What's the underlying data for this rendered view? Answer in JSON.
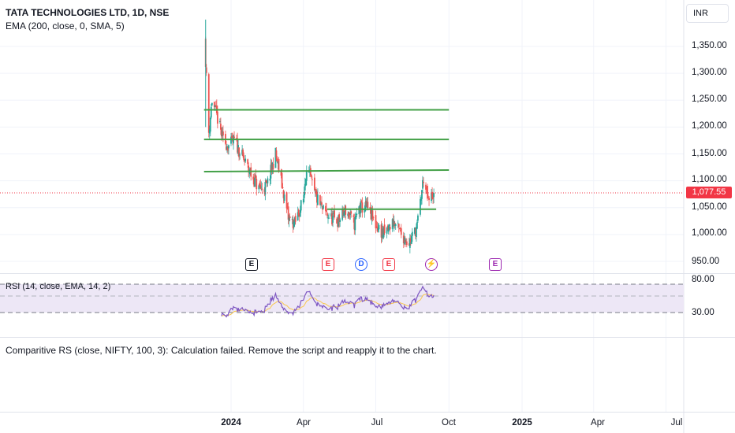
{
  "header": {
    "title": "TATA TECHNOLOGIES LTD, 1D, NSE",
    "study": "EMA (200, close, 0, SMA, 5)"
  },
  "currency": "INR",
  "last_price": "1,077.55",
  "price_axis": [
    "1,350.00",
    "1,300.00",
    "1,250.00",
    "1,200.00",
    "1,150.00",
    "1,100.00",
    "1,050.00",
    "1,000.00",
    "950.00"
  ],
  "time_axis": [
    "2024",
    "Apr",
    "Jul",
    "Oct",
    "2025",
    "Apr",
    "Jul"
  ],
  "events": [
    {
      "label": "E",
      "type": "earnings-past"
    },
    {
      "label": "E",
      "type": "earnings"
    },
    {
      "label": "D",
      "type": "dividend"
    },
    {
      "label": "E",
      "type": "earnings"
    },
    {
      "label": "⚡",
      "type": "split"
    },
    {
      "label": "E",
      "type": "earnings-future"
    }
  ],
  "rsi": {
    "label": "RSI (14, close, EMA, 14, 2)",
    "levels": [
      "80.00",
      "30.00"
    ]
  },
  "comparative": {
    "label": "Comparitive RS (close, NIFTY, 100, 3): Calculation failed. Remove the script and reapply it to the chart."
  },
  "colors": {
    "up": "#26a69a",
    "down": "#ef5350",
    "levels": "#43a047",
    "rsi_line": "#7e57c2",
    "rsi_ma": "#f9c74f",
    "rsi_band": "#ede7f6",
    "last_price": "#f23645"
  },
  "chart_data": {
    "type": "candlestick",
    "series": [
      {
        "name": "TATA TECHNOLOGIES LTD",
        "close_path": [
          [
            "2023-11-30",
            1325
          ],
          [
            "2023-12-04",
            1190
          ],
          [
            "2023-12-08",
            1250
          ],
          [
            "2023-12-15",
            1215
          ],
          [
            "2023-12-22",
            1175
          ],
          [
            "2023-12-29",
            1165
          ],
          [
            "2024-01-05",
            1175
          ],
          [
            "2024-01-15",
            1145
          ],
          [
            "2024-01-25",
            1115
          ],
          [
            "2024-02-05",
            1085
          ],
          [
            "2024-02-15",
            1090
          ],
          [
            "2024-02-26",
            1150
          ],
          [
            "2024-03-06",
            1085
          ],
          [
            "2024-03-13",
            1030
          ],
          [
            "2024-03-21",
            1020
          ],
          [
            "2024-04-01",
            1065
          ],
          [
            "2024-04-05",
            1130
          ],
          [
            "2024-04-15",
            1075
          ],
          [
            "2024-04-25",
            1045
          ],
          [
            "2024-05-06",
            1030
          ],
          [
            "2024-05-15",
            1025
          ],
          [
            "2024-05-24",
            1045
          ],
          [
            "2024-06-04",
            1020
          ],
          [
            "2024-06-10",
            1050
          ],
          [
            "2024-06-20",
            1050
          ],
          [
            "2024-07-02",
            1015
          ],
          [
            "2024-07-12",
            1000
          ],
          [
            "2024-07-23",
            1025
          ],
          [
            "2024-08-02",
            1000
          ],
          [
            "2024-08-12",
            985
          ],
          [
            "2024-08-22",
            1015
          ],
          [
            "2024-08-30",
            1105
          ],
          [
            "2024-09-05",
            1060
          ],
          [
            "2024-09-12",
            1077.55
          ]
        ]
      }
    ],
    "horizontal_levels": [
      1232,
      1177,
      1120,
      1047
    ],
    "last_close": 1077.55,
    "ylim": [
      920,
      1400
    ],
    "xlim": [
      "2023-11-10",
      "2025-07-25"
    ],
    "rsi_levels": [
      80,
      30
    ]
  }
}
